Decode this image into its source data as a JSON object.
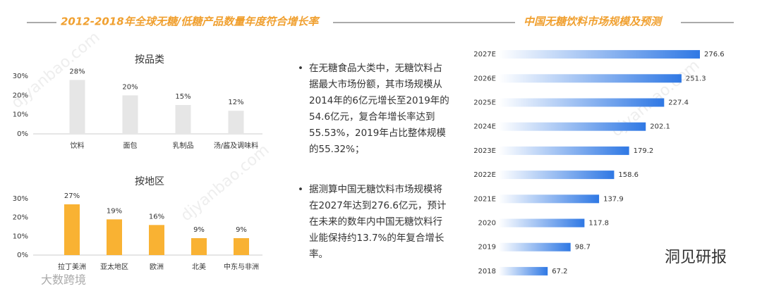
{
  "headers": {
    "left": "2012-2018年全球无糖/低糖产品数量年度符合增长率",
    "right": "中国无糖饮料市场规模及预测"
  },
  "chart_data": [
    {
      "type": "bar",
      "title": "按品类",
      "categories": [
        "饮料",
        "面包",
        "乳制品",
        "汤/酱及调味料"
      ],
      "values": [
        28,
        20,
        15,
        12
      ],
      "value_labels": [
        "28%",
        "20%",
        "15%",
        "12%"
      ],
      "color": "#e6e6e6",
      "ylim": [
        0,
        30
      ],
      "yticks": [
        {
          "value": 0,
          "label": "0%"
        },
        {
          "value": 10,
          "label": "10%"
        },
        {
          "value": 20,
          "label": "20%"
        },
        {
          "value": 30,
          "label": "30%"
        }
      ]
    },
    {
      "type": "bar",
      "title": "按地区",
      "categories": [
        "拉丁美洲",
        "亚太地区",
        "欧洲",
        "北美",
        "中东与非洲"
      ],
      "values": [
        27,
        19,
        16,
        9,
        9
      ],
      "value_labels": [
        "27%",
        "19%",
        "16%",
        "9%",
        "9%"
      ],
      "color": "#f9b233",
      "ylim": [
        0,
        30
      ],
      "yticks": [
        {
          "value": 0,
          "label": "0%"
        },
        {
          "value": 10,
          "label": "10%"
        },
        {
          "value": 20,
          "label": "20%"
        },
        {
          "value": 30,
          "label": "30%"
        }
      ]
    },
    {
      "type": "hbar",
      "categories": [
        "2027E",
        "2026E",
        "2025E",
        "2024E",
        "2023E",
        "2022E",
        "2021E",
        "2020",
        "2019",
        "2018"
      ],
      "values": [
        276.6,
        251.3,
        227.4,
        202.1,
        179.2,
        158.6,
        137.9,
        117.8,
        98.7,
        67.2
      ],
      "color": "#2f78e4"
    }
  ],
  "bullets": [
    "在无糖食品大类中，无糖饮料占据最大市场份额，其市场规模从2014年的6亿元增长至2019年的54.6亿元，复合年增长率达到55.53%，2019年占比整体规模的55.32%；",
    "据测算中国无糖饮料市场规模将在2027年达到276.6亿元，预计在未来的数年内中国无糖饮料行业能保持约13.7%的年复合增长率。"
  ],
  "watermark": "djyanbao.com",
  "brand": "洞见研报",
  "logo": "大数跨境"
}
